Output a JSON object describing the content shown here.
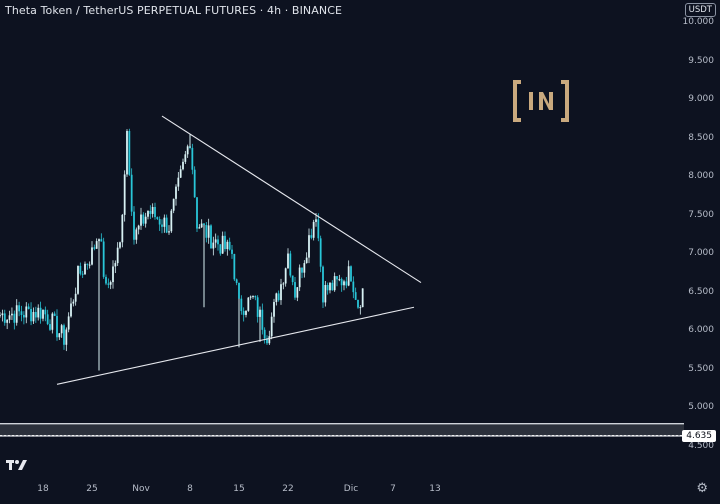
{
  "header": {
    "title": "Theta Token / TetherUS PERPETUAL FUTURES · 4h · BINANCE",
    "currency_badge": "USDT"
  },
  "price_scale": {
    "ticks": [
      "10.000",
      "9.500",
      "9.000",
      "8.500",
      "8.000",
      "7.500",
      "7.000",
      "6.500",
      "6.000",
      "5.500",
      "5.000",
      "4.500"
    ],
    "current_price_label": "4.635"
  },
  "time_scale": {
    "ticks": [
      "18",
      "25",
      "Nov",
      "8",
      "15",
      "22",
      "Dic",
      "7",
      "13"
    ]
  },
  "icons": {
    "logo": "tradingview-logo-icon",
    "settings": "gear-icon",
    "watermark": "beincrypto-watermark-icon"
  },
  "colors": {
    "background": "#0d1220",
    "candle": "#d9f2f5",
    "candle_accent": "#29c6d8",
    "trendline": "#e6e8ee",
    "watermark": "#c9a97e",
    "band": "#cfd3da"
  },
  "chart_data": {
    "type": "candlestick",
    "title": "Theta Token / TetherUS PERPETUAL FUTURES · 4h · BINANCE",
    "ylim": [
      4.5,
      10.0
    ],
    "price_path": [
      [
        "18 Oct",
        6.25
      ],
      [
        "21 Oct",
        5.9
      ],
      [
        "23 Oct",
        6.7
      ],
      [
        "25 Oct",
        7.0
      ],
      [
        "26 Oct",
        7.3
      ],
      [
        "27 Oct",
        6.5
      ],
      [
        "29 Oct",
        7.1
      ],
      [
        "30 Oct",
        8.6
      ],
      [
        "31 Oct",
        7.2
      ],
      [
        "2 Nov",
        7.55
      ],
      [
        "5 Nov",
        7.35
      ],
      [
        "8 Nov",
        8.5
      ],
      [
        "9 Nov",
        7.4
      ],
      [
        "11 Nov",
        7.2
      ],
      [
        "14 Nov",
        7.0
      ],
      [
        "15 Nov",
        6.3
      ],
      [
        "17 Nov",
        6.4
      ],
      [
        "19 Nov",
        5.95
      ],
      [
        "21 Nov",
        6.6
      ],
      [
        "22 Nov",
        7.0
      ],
      [
        "23 Nov",
        6.5
      ],
      [
        "25 Nov",
        7.2
      ],
      [
        "26 Nov",
        7.55
      ],
      [
        "27 Nov",
        6.5
      ],
      [
        "29 Nov",
        6.6
      ],
      [
        "1 Dic",
        6.75
      ],
      [
        "2 Dic",
        6.35
      ],
      [
        "3 Dic",
        6.6
      ]
    ],
    "wicks": [
      {
        "x": "26 Oct",
        "low": 5.48
      },
      {
        "x": "8 Nov",
        "high": 8.55
      },
      {
        "x": "10 Nov",
        "low": 6.3
      },
      {
        "x": "15 Nov",
        "low": 5.78
      },
      {
        "x": "18 Nov",
        "low": 5.85
      }
    ],
    "trendlines": [
      {
        "from": [
          "20 Oct",
          5.3
        ],
        "to": [
          "10 Dic",
          6.3
        ]
      },
      {
        "from": [
          "4 Nov",
          8.78
        ],
        "to": [
          "11 Dic",
          6.62
        ]
      }
    ],
    "horizontal_band": [
      4.63,
      4.79
    ],
    "last_price": 4.635
  }
}
